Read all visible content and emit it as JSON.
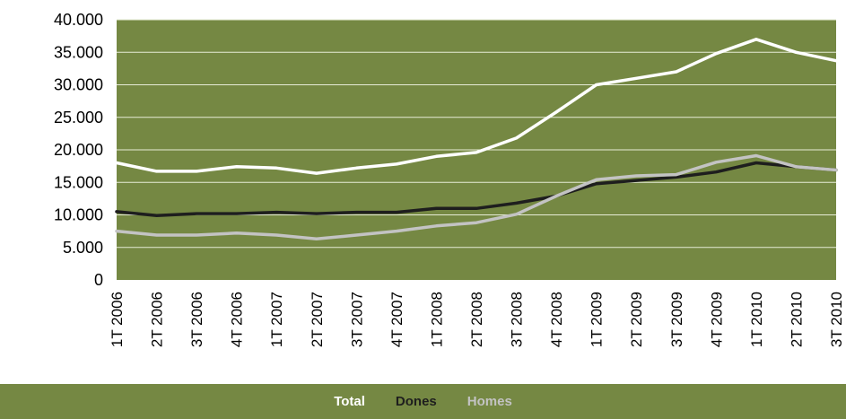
{
  "chart_data": {
    "type": "line",
    "title": "",
    "xlabel": "",
    "ylabel": "",
    "ylim": [
      0,
      40000
    ],
    "yticks": [
      0,
      5000,
      10000,
      15000,
      20000,
      25000,
      30000,
      35000,
      40000
    ],
    "ytick_labels": [
      "0",
      "5.000",
      "10.000",
      "15.000",
      "20.000",
      "25.000",
      "30.000",
      "35.000",
      "40.000"
    ],
    "categories": [
      "1T 2006",
      "2T 2006",
      "3T 2006",
      "4T 2006",
      "1T 2007",
      "2T 2007",
      "3T 2007",
      "4T 2007",
      "1T 2008",
      "2T 2008",
      "3T 2008",
      "4T 2008",
      "1T 2009",
      "2T 2009",
      "3T 2009",
      "4T 2009",
      "1T 2010",
      "2T 2010",
      "3T 2010"
    ],
    "grid": true,
    "legend_position": "bottom",
    "plot_background": "#758843",
    "series": [
      {
        "name": "Total",
        "color": "#ffffff",
        "values": [
          18000,
          16700,
          16700,
          17400,
          17200,
          16400,
          17200,
          17800,
          19000,
          19600,
          21800,
          25800,
          30000,
          31000,
          32000,
          34800,
          37000,
          35000,
          33700
        ]
      },
      {
        "name": "Dones",
        "color": "#1e1e1e",
        "values": [
          10500,
          9900,
          10200,
          10200,
          10400,
          10200,
          10400,
          10400,
          11000,
          11000,
          11800,
          12900,
          14800,
          15300,
          15800,
          16600,
          18000,
          17400,
          16900
        ]
      },
      {
        "name": "Homes",
        "color": "#c3c3c3",
        "values": [
          7500,
          6900,
          6900,
          7200,
          6900,
          6300,
          6900,
          7500,
          8300,
          8800,
          10100,
          12900,
          15400,
          16000,
          16200,
          18100,
          19100,
          17400,
          16900
        ]
      }
    ]
  }
}
